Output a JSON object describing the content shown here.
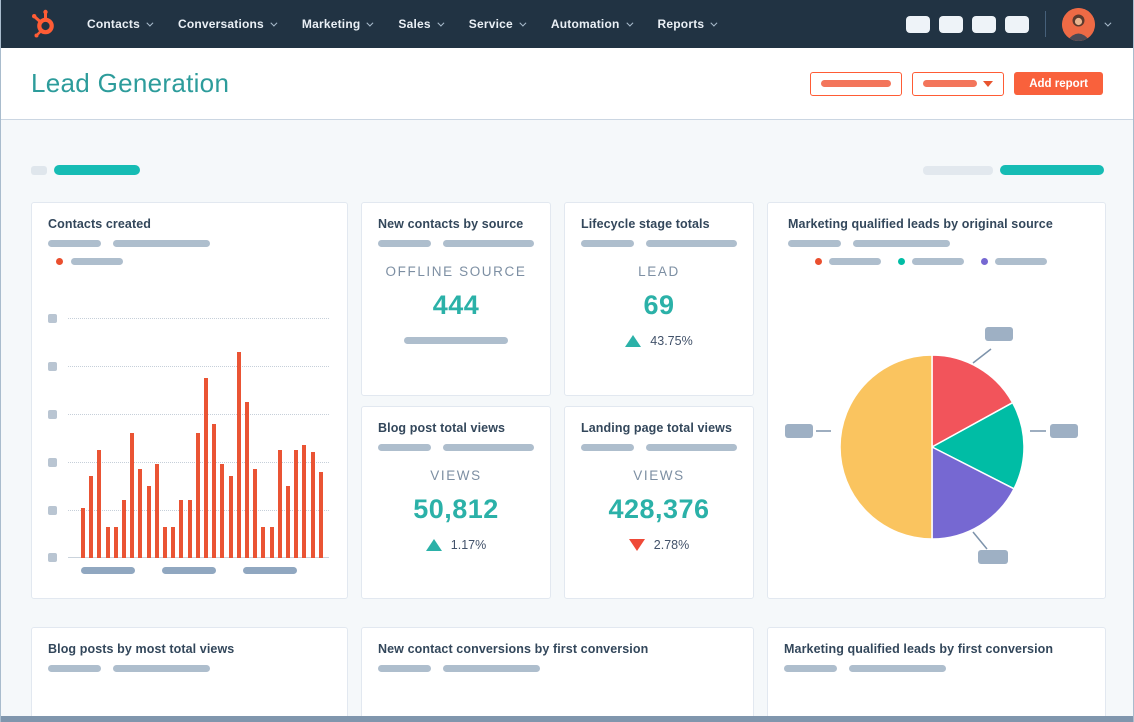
{
  "brand": {
    "name": "HubSpot",
    "orange": "#ff5c35"
  },
  "nav": {
    "items": [
      {
        "label": "Contacts"
      },
      {
        "label": "Conversations"
      },
      {
        "label": "Marketing"
      },
      {
        "label": "Sales"
      },
      {
        "label": "Service"
      },
      {
        "label": "Automation"
      },
      {
        "label": "Reports"
      }
    ],
    "icon_placeholders": [
      "nav-icon-placeholder-1",
      "nav-icon-placeholder-2",
      "nav-icon-placeholder-3",
      "nav-icon-placeholder-4"
    ]
  },
  "header": {
    "title": "Lead Generation",
    "add_report_label": "Add report"
  },
  "cards": {
    "contacts_created_title": "Contacts created",
    "mql_original_source_title": "Marketing qualified leads by original source",
    "blog_posts_most_views_title": "Blog posts by most total views",
    "new_contact_conversions_title": "New contact conversions by first conversion",
    "mql_first_conversion_title": "Marketing qualified leads by first conversion"
  },
  "stats": {
    "new_contacts_by_source": {
      "title": "New contacts by source",
      "metric_label": "OFFLINE SOURCE",
      "value": "444"
    },
    "lifecycle_stage_totals": {
      "title": "Lifecycle stage totals",
      "metric_label": "LEAD",
      "value": "69",
      "delta": "43.75%",
      "delta_direction": "up"
    },
    "blog_post_total_views": {
      "title": "Blog post total views",
      "metric_label": "VIEWS",
      "value": "50,812",
      "delta": "1.17%",
      "delta_direction": "up"
    },
    "landing_page_total_views": {
      "title": "Landing page total views",
      "metric_label": "VIEWS",
      "value": "428,376",
      "delta": "2.78%",
      "delta_direction": "down"
    }
  },
  "colors": {
    "nav_bg": "#213343",
    "title_teal": "#2d9c9b",
    "value_teal": "#2bb1a8",
    "delta_up": "#2bb1a8",
    "delta_down": "#ef4937",
    "bar_orange": "#ea5434",
    "placeholder_gray": "#aebecd",
    "filter_teal": "#16bcb4",
    "page_bg": "#f5f8fa"
  },
  "chart_data": [
    {
      "type": "bar",
      "title": "Contacts created",
      "note": "axis tick and x labels are redacted placeholder bars; values estimated from pixels, relative units",
      "ylim": [
        0,
        100
      ],
      "grid": true,
      "x_labels": [
        "placeholder-1",
        "placeholder-2",
        "placeholder-3"
      ],
      "series": [
        {
          "name": "contacts-created",
          "color": "#ea5434",
          "values": [
            21,
            34,
            45,
            13,
            13,
            24,
            52,
            37,
            30,
            39,
            13,
            13,
            24,
            24,
            52,
            75,
            56,
            39,
            34,
            86,
            65,
            37,
            13,
            13,
            45,
            30,
            45,
            47,
            44,
            36
          ]
        }
      ]
    },
    {
      "type": "pie",
      "title": "Marketing qualified leads by original source",
      "note": "slice labels are redacted placeholder chips; percentages estimated from arc angles",
      "start_angle_deg": 0,
      "legend": "three placeholder entries (orange, teal, purple dots)",
      "slices": [
        {
          "name": "slice-red",
          "value": 17,
          "color": "#f2545b"
        },
        {
          "name": "slice-teal",
          "value": 15.5,
          "color": "#00bda5"
        },
        {
          "name": "slice-purple",
          "value": 17.5,
          "color": "#7668d2"
        },
        {
          "name": "slice-yellow",
          "value": 50,
          "color": "#fac45f"
        }
      ]
    }
  ]
}
